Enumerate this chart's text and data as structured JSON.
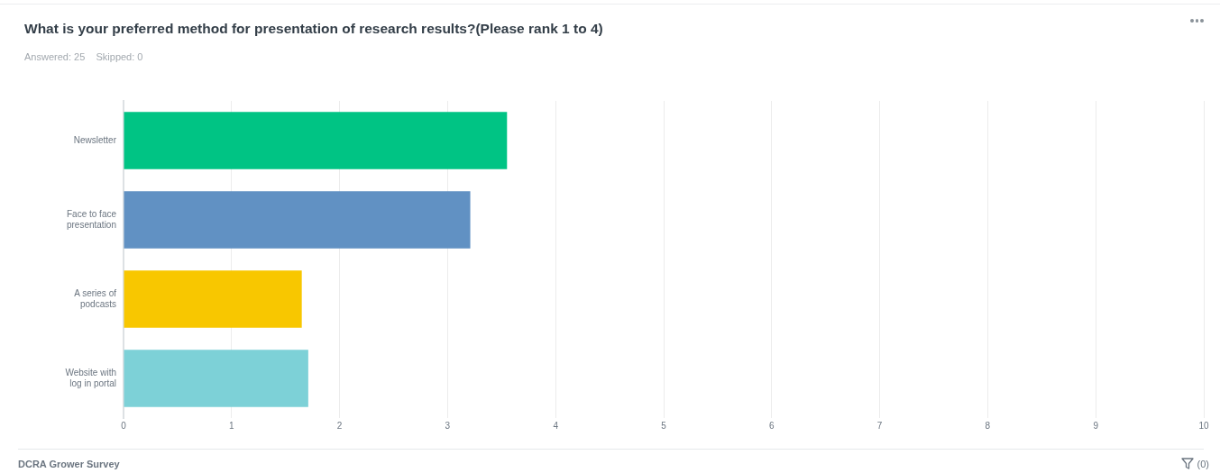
{
  "chart_data": {
    "type": "bar",
    "orientation": "horizontal",
    "title": "What is your preferred method for presentation of research results?(Please rank 1 to 4)",
    "subtitle": "Answered: 25    Skipped: 0",
    "categories": [
      "Newsletter",
      "Face to face presentation",
      "A series of podcasts",
      "Website with log in portal"
    ],
    "values": [
      3.55,
      3.21,
      1.65,
      1.71
    ],
    "colors": [
      "#00c484",
      "#6191c3",
      "#f8c700",
      "#7dd1d7"
    ],
    "xlim": [
      0,
      10
    ],
    "xticks": [
      0,
      1,
      2,
      3,
      4,
      5,
      6,
      7,
      8,
      9,
      10
    ],
    "grid": "x",
    "annotations": [
      "DCRA Grower Survey",
      "(0)"
    ]
  }
}
